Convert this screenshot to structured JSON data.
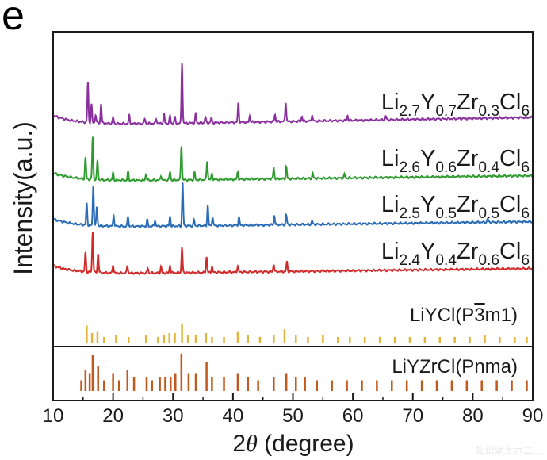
{
  "panel_letter": "e",
  "watermark": "知识泥土六二三",
  "chart_data": {
    "type": "line",
    "title": "",
    "xlabel_prefix": "2",
    "xlabel_theta": "θ",
    "xlabel_suffix": " (degree)",
    "ylabel": "Intensity(a.u.)",
    "xlim": [
      10,
      90
    ],
    "xticks": [
      "10",
      "20",
      "30",
      "40",
      "50",
      "60",
      "70",
      "80",
      "90"
    ],
    "series": [
      {
        "name": "Li2.7Y0.7Zr0.3Cl6",
        "color": "#8a2f9e",
        "label": [
          [
            "Li",
            ""
          ],
          [
            "2.7",
            "sub"
          ],
          [
            "Y",
            ""
          ],
          [
            "0.7",
            "sub"
          ],
          [
            "Zr",
            ""
          ],
          [
            "0.3",
            "sub"
          ],
          [
            "Cl",
            ""
          ],
          [
            "6",
            "sub"
          ]
        ],
        "start": 0.8,
        "slope": 0.008,
        "peaks": [
          [
            15.8,
            3.3
          ],
          [
            16.4,
            1.5
          ],
          [
            17.1,
            0.7
          ],
          [
            18.0,
            1.6
          ],
          [
            20.0,
            0.5
          ],
          [
            22.7,
            0.7
          ],
          [
            25.3,
            0.4
          ],
          [
            27.2,
            0.4
          ],
          [
            28.5,
            0.8
          ],
          [
            29.5,
            0.6
          ],
          [
            30.3,
            0.5
          ],
          [
            31.5,
            5.0
          ],
          [
            33.8,
            0.8
          ],
          [
            35.4,
            0.5
          ],
          [
            36.4,
            0.4
          ],
          [
            40.9,
            1.6
          ],
          [
            42.8,
            0.5
          ],
          [
            47.0,
            0.6
          ],
          [
            48.8,
            1.6
          ],
          [
            51.5,
            0.4
          ],
          [
            53.2,
            0.5
          ],
          [
            59.1,
            0.4
          ],
          [
            65.5,
            0.3
          ]
        ]
      },
      {
        "name": "Li2.6Y0.6Zr0.4Cl6",
        "color": "#2e9b2e",
        "label": [
          [
            "Li",
            ""
          ],
          [
            "2.6",
            "sub"
          ],
          [
            "Y",
            ""
          ],
          [
            "0.6",
            "sub"
          ],
          [
            "Zr",
            ""
          ],
          [
            "0.4",
            "sub"
          ],
          [
            "Cl",
            ""
          ],
          [
            "6",
            "sub"
          ]
        ],
        "start": 0.7,
        "slope": 0.006,
        "peaks": [
          [
            15.4,
            1.8
          ],
          [
            16.6,
            3.5
          ],
          [
            17.4,
            1.6
          ],
          [
            20.0,
            0.6
          ],
          [
            22.5,
            0.7
          ],
          [
            25.5,
            0.5
          ],
          [
            28.0,
            0.4
          ],
          [
            29.5,
            0.7
          ],
          [
            31.4,
            2.9
          ],
          [
            33.6,
            0.6
          ],
          [
            35.7,
            1.6
          ],
          [
            36.5,
            0.5
          ],
          [
            40.8,
            0.6
          ],
          [
            46.8,
            0.9
          ],
          [
            48.9,
            1.0
          ],
          [
            53.3,
            0.4
          ],
          [
            58.6,
            0.3
          ]
        ]
      },
      {
        "name": "Li2.5Y0.5Zr0.5Cl6",
        "color": "#2a6cb5",
        "label": [
          [
            "Li",
            ""
          ],
          [
            "2.5",
            "sub"
          ],
          [
            "Y",
            ""
          ],
          [
            "0.5",
            "sub"
          ],
          [
            "Zr",
            ""
          ],
          [
            "0.5",
            "sub"
          ],
          [
            "Cl",
            ""
          ],
          [
            "6",
            "sub"
          ]
        ],
        "start": 0.7,
        "slope": 0.006,
        "peaks": [
          [
            15.6,
            1.8
          ],
          [
            16.7,
            3.3
          ],
          [
            17.3,
            1.6
          ],
          [
            20.1,
            0.9
          ],
          [
            22.5,
            0.8
          ],
          [
            25.7,
            0.5
          ],
          [
            27.0,
            0.5
          ],
          [
            29.5,
            0.8
          ],
          [
            31.6,
            3.6
          ],
          [
            33.5,
            0.5
          ],
          [
            35.8,
            1.7
          ],
          [
            36.6,
            0.7
          ],
          [
            41.0,
            0.7
          ],
          [
            46.9,
            0.8
          ],
          [
            48.9,
            0.8
          ],
          [
            53.2,
            0.3
          ],
          [
            82.5,
            0.3
          ]
        ]
      },
      {
        "name": "Li2.4Y0.4Zr0.6Cl6",
        "color": "#d22a2a",
        "label": [
          [
            "Li",
            ""
          ],
          [
            "2.4",
            "sub"
          ],
          [
            "Y",
            ""
          ],
          [
            "0.4",
            "sub"
          ],
          [
            "Zr",
            ""
          ],
          [
            "0.6",
            "sub"
          ],
          [
            "Cl",
            ""
          ],
          [
            "6",
            "sub"
          ]
        ],
        "start": 0.7,
        "slope": 0.006,
        "peaks": [
          [
            15.4,
            1.6
          ],
          [
            16.6,
            3.4
          ],
          [
            17.5,
            1.6
          ],
          [
            20.0,
            0.7
          ],
          [
            22.4,
            0.6
          ],
          [
            25.8,
            0.4
          ],
          [
            28.0,
            0.5
          ],
          [
            29.5,
            0.6
          ],
          [
            31.5,
            2.1
          ],
          [
            35.6,
            1.3
          ],
          [
            36.5,
            0.5
          ],
          [
            40.8,
            0.5
          ],
          [
            46.8,
            0.6
          ],
          [
            49.0,
            0.8
          ]
        ]
      }
    ],
    "references": [
      {
        "name": "LiYCl(P-3m1)",
        "color": "#e2b53a",
        "label": [
          [
            "LiYCl(P",
            ""
          ],
          [
            "3",
            "bar"
          ],
          [
            "m1)",
            ""
          ]
        ],
        "lines": [
          [
            15.6,
            0.9
          ],
          [
            16.5,
            0.5
          ],
          [
            17.4,
            0.6
          ],
          [
            18.5,
            0.3
          ],
          [
            20.5,
            0.4
          ],
          [
            22.6,
            0.3
          ],
          [
            25.5,
            0.4
          ],
          [
            27.5,
            0.3
          ],
          [
            28.5,
            0.4
          ],
          [
            29.4,
            0.5
          ],
          [
            30.3,
            0.5
          ],
          [
            31.5,
            1.0
          ],
          [
            32.5,
            0.4
          ],
          [
            33.8,
            0.4
          ],
          [
            35.5,
            0.5
          ],
          [
            36.5,
            0.3
          ],
          [
            38.5,
            0.3
          ],
          [
            40.8,
            0.6
          ],
          [
            42.5,
            0.4
          ],
          [
            44.5,
            0.3
          ],
          [
            46.8,
            0.4
          ],
          [
            48.6,
            0.7
          ],
          [
            50.5,
            0.4
          ],
          [
            52.5,
            0.3
          ],
          [
            55.0,
            0.4
          ],
          [
            57.5,
            0.3
          ],
          [
            59.5,
            0.3
          ],
          [
            62.0,
            0.3
          ],
          [
            64.5,
            0.3
          ],
          [
            67.0,
            0.3
          ],
          [
            69.5,
            0.3
          ],
          [
            72.0,
            0.3
          ],
          [
            74.5,
            0.3
          ],
          [
            77.0,
            0.3
          ],
          [
            79.5,
            0.3
          ],
          [
            82.0,
            0.4
          ],
          [
            84.5,
            0.3
          ],
          [
            87.0,
            0.3
          ],
          [
            89.0,
            0.3
          ]
        ]
      },
      {
        "name": "LiYZrCl(Pnma)",
        "color": "#c2581c",
        "label": [
          [
            "LiYZrCl(Pnma)",
            ""
          ]
        ],
        "lines": [
          [
            14.7,
            0.3
          ],
          [
            15.4,
            0.6
          ],
          [
            16.1,
            0.5
          ],
          [
            16.6,
            1.0
          ],
          [
            17.5,
            0.7
          ],
          [
            18.5,
            0.3
          ],
          [
            20.0,
            0.5
          ],
          [
            21.0,
            0.3
          ],
          [
            22.4,
            0.6
          ],
          [
            23.5,
            0.4
          ],
          [
            25.6,
            0.4
          ],
          [
            26.5,
            0.3
          ],
          [
            27.8,
            0.4
          ],
          [
            28.7,
            0.4
          ],
          [
            29.6,
            0.4
          ],
          [
            30.4,
            0.5
          ],
          [
            31.4,
            1.05
          ],
          [
            32.6,
            0.5
          ],
          [
            33.8,
            0.5
          ],
          [
            35.6,
            0.8
          ],
          [
            36.5,
            0.4
          ],
          [
            38.5,
            0.4
          ],
          [
            40.8,
            0.5
          ],
          [
            42.5,
            0.4
          ],
          [
            44.2,
            0.3
          ],
          [
            46.8,
            0.4
          ],
          [
            48.9,
            0.5
          ],
          [
            50.5,
            0.4
          ],
          [
            52.0,
            0.4
          ],
          [
            54.0,
            0.3
          ],
          [
            56.5,
            0.3
          ],
          [
            59.0,
            0.3
          ],
          [
            61.5,
            0.3
          ],
          [
            64.0,
            0.3
          ],
          [
            66.5,
            0.3
          ],
          [
            69.0,
            0.3
          ],
          [
            71.5,
            0.3
          ],
          [
            74.0,
            0.3
          ],
          [
            76.5,
            0.3
          ],
          [
            79.0,
            0.3
          ],
          [
            81.5,
            0.3
          ],
          [
            84.0,
            0.3
          ],
          [
            86.5,
            0.3
          ],
          [
            89.0,
            0.3
          ]
        ]
      }
    ]
  }
}
